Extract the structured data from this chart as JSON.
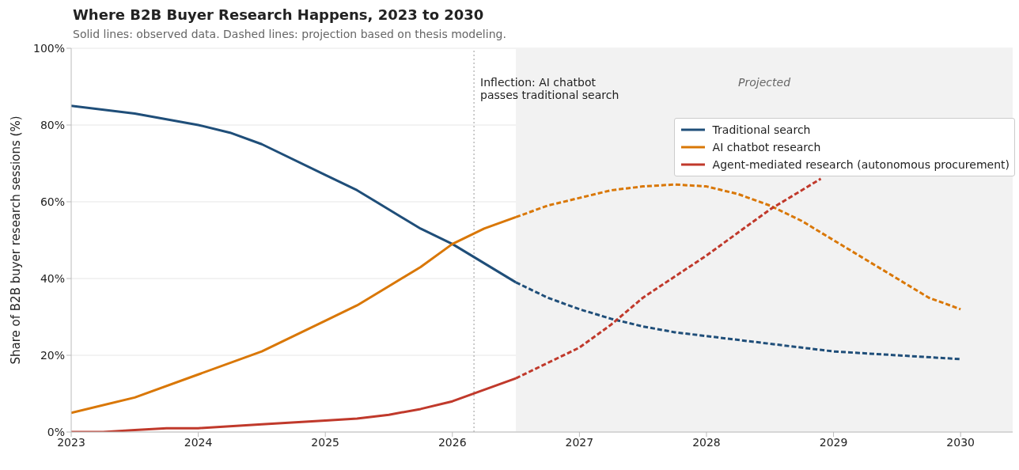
{
  "chart_data": {
    "type": "line",
    "title": "Where B2B Buyer Research Happens, 2023 to 2030",
    "subtitle": "Solid lines: observed data. Dashed lines: projection based on thesis modeling.",
    "ylabel": "Share of B2B buyer research sessions (%)",
    "xlim": [
      2023,
      2030.41
    ],
    "xticks": [
      2023,
      2024,
      2025,
      2026,
      2027,
      2028,
      2029,
      2030
    ],
    "ylim": [
      0,
      100
    ],
    "yticks": [
      {
        "value": 0,
        "label": "0%"
      },
      {
        "value": 20,
        "label": "20%"
      },
      {
        "value": 40,
        "label": "40%"
      },
      {
        "value": 60,
        "label": "60%"
      },
      {
        "value": 80,
        "label": "80%"
      },
      {
        "value": 100,
        "label": "100%"
      }
    ],
    "grid": "y",
    "legend": "top right",
    "marker": "none",
    "series": [
      {
        "name": "Traditional search",
        "color": "#1f4e79",
        "line_style": "solid",
        "x": [
          2023,
          2023.5,
          2024,
          2024.25,
          2024.5,
          2025,
          2025.25,
          2025.5,
          2025.75,
          2026,
          2026.25,
          2026.5
        ],
        "values": [
          85,
          83,
          80,
          78,
          75,
          67,
          63,
          58,
          53,
          49,
          44,
          39
        ]
      },
      {
        "name": "AI chatbot research",
        "color": "#d97706",
        "line_style": "solid",
        "x": [
          2023,
          2023.5,
          2024,
          2024.5,
          2025,
          2025.25,
          2025.5,
          2025.75,
          2026,
          2026.25,
          2026.5
        ],
        "values": [
          5,
          9,
          15,
          21,
          29,
          33,
          38,
          43,
          49,
          53,
          56
        ]
      },
      {
        "name": "Agent-mediated research (autonomous procurement)",
        "color": "#c0392b",
        "line_style": "solid",
        "x": [
          2023,
          2023.25,
          2023.5,
          2023.75,
          2024,
          2024.5,
          2025,
          2025.25,
          2025.5,
          2025.75,
          2026,
          2026.25,
          2026.5
        ],
        "values": [
          0,
          0,
          0.5,
          1,
          1,
          2,
          3,
          3.5,
          4.5,
          6,
          8,
          11,
          14
        ]
      },
      {
        "color": "#1f4e79",
        "line_style": "dashed",
        "x": [
          2026.5,
          2026.75,
          2027,
          2027.25,
          2027.5,
          2027.75,
          2028,
          2028.5,
          2029,
          2029.5,
          2030
        ],
        "values": [
          39,
          35,
          32,
          29.5,
          27.5,
          26,
          25,
          23,
          21,
          20,
          19
        ]
      },
      {
        "color": "#d97706",
        "line_style": "dashed",
        "x": [
          2026.5,
          2026.75,
          2027,
          2027.25,
          2027.5,
          2027.75,
          2028,
          2028.25,
          2028.5,
          2028.75,
          2029,
          2029.25,
          2029.5,
          2029.75,
          2030
        ],
        "values": [
          56,
          59,
          61,
          63,
          64,
          64.5,
          64,
          62,
          59,
          55,
          50,
          45,
          40,
          35,
          32
        ]
      },
      {
        "color": "#c0392b",
        "line_style": "dashed",
        "x": [
          2026.5,
          2027,
          2027.25,
          2027.5,
          2027.75,
          2028,
          2028.25,
          2028.5,
          2028.75,
          2028.9
        ],
        "values": [
          14,
          22,
          28,
          35,
          40.5,
          46,
          52,
          58,
          63,
          66
        ]
      }
    ],
    "ref_lines": [
      {
        "axis": "x",
        "value": 2026.17,
        "label": "Inflection: AI chatbot passes traditional search",
        "color": "#999999",
        "line_style": "dotted"
      }
    ],
    "bands": [
      {
        "axis": "x",
        "from": 2026.5,
        "to": 2030.41,
        "label": "Projected",
        "color": "#f2f2f2"
      }
    ]
  }
}
